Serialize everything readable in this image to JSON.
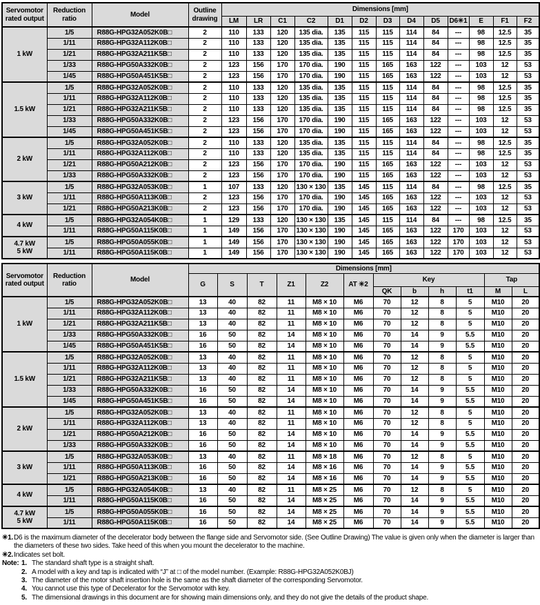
{
  "table1": {
    "header": {
      "output": "Servomotor\nrated output",
      "ratio": "Reduction\nratio",
      "model": "Model",
      "outline": "Outline\ndrawing",
      "dims": "Dimensions [mm]"
    },
    "dim_cols": [
      "LM",
      "LR",
      "C1",
      "C2",
      "D1",
      "D2",
      "D3",
      "D4",
      "D5",
      "D6✳1",
      "E",
      "F1",
      "F2"
    ],
    "groups": [
      {
        "output": "1 kW",
        "rows": [
          [
            "1/5",
            "R88G-HPG32A052K0B□",
            "2",
            "110",
            "133",
            "120",
            "135 dia.",
            "135",
            "115",
            "115",
            "114",
            "84",
            "---",
            "98",
            "12.5",
            "35"
          ],
          [
            "1/11",
            "R88G-HPG32A112K0B□",
            "2",
            "110",
            "133",
            "120",
            "135 dia.",
            "135",
            "115",
            "115",
            "114",
            "84",
            "---",
            "98",
            "12.5",
            "35"
          ],
          [
            "1/21",
            "R88G-HPG32A211K5B□",
            "2",
            "110",
            "133",
            "120",
            "135 dia.",
            "135",
            "115",
            "115",
            "114",
            "84",
            "---",
            "98",
            "12.5",
            "35"
          ],
          [
            "1/33",
            "R88G-HPG50A332K0B□",
            "2",
            "123",
            "156",
            "170",
            "170 dia.",
            "190",
            "115",
            "165",
            "163",
            "122",
            "---",
            "103",
            "12",
            "53"
          ],
          [
            "1/45",
            "R88G-HPG50A451K5B□",
            "2",
            "123",
            "156",
            "170",
            "170 dia.",
            "190",
            "115",
            "165",
            "163",
            "122",
            "---",
            "103",
            "12",
            "53"
          ]
        ]
      },
      {
        "output": "1.5 kW",
        "rows": [
          [
            "1/5",
            "R88G-HPG32A052K0B□",
            "2",
            "110",
            "133",
            "120",
            "135 dia.",
            "135",
            "115",
            "115",
            "114",
            "84",
            "---",
            "98",
            "12.5",
            "35"
          ],
          [
            "1/11",
            "R88G-HPG32A112K0B□",
            "2",
            "110",
            "133",
            "120",
            "135 dia.",
            "135",
            "115",
            "115",
            "114",
            "84",
            "---",
            "98",
            "12.5",
            "35"
          ],
          [
            "1/21",
            "R88G-HPG32A211K5B□",
            "2",
            "110",
            "133",
            "120",
            "135 dia.",
            "135",
            "115",
            "115",
            "114",
            "84",
            "---",
            "98",
            "12.5",
            "35"
          ],
          [
            "1/33",
            "R88G-HPG50A332K0B□",
            "2",
            "123",
            "156",
            "170",
            "170 dia.",
            "190",
            "115",
            "165",
            "163",
            "122",
            "---",
            "103",
            "12",
            "53"
          ],
          [
            "1/45",
            "R88G-HPG50A451K5B□",
            "2",
            "123",
            "156",
            "170",
            "170 dia.",
            "190",
            "115",
            "165",
            "163",
            "122",
            "---",
            "103",
            "12",
            "53"
          ]
        ]
      },
      {
        "output": "2 kW",
        "rows": [
          [
            "1/5",
            "R88G-HPG32A052K0B□",
            "2",
            "110",
            "133",
            "120",
            "135 dia.",
            "135",
            "115",
            "115",
            "114",
            "84",
            "---",
            "98",
            "12.5",
            "35"
          ],
          [
            "1/11",
            "R88G-HPG32A112K0B□",
            "2",
            "110",
            "133",
            "120",
            "135 dia.",
            "135",
            "115",
            "115",
            "114",
            "84",
            "---",
            "98",
            "12.5",
            "35"
          ],
          [
            "1/21",
            "R88G-HPG50A212K0B□",
            "2",
            "123",
            "156",
            "170",
            "170 dia.",
            "190",
            "115",
            "165",
            "163",
            "122",
            "---",
            "103",
            "12",
            "53"
          ],
          [
            "1/33",
            "R88G-HPG50A332K0B□",
            "2",
            "123",
            "156",
            "170",
            "170 dia.",
            "190",
            "115",
            "165",
            "163",
            "122",
            "---",
            "103",
            "12",
            "53"
          ]
        ]
      },
      {
        "output": "3 kW",
        "rows": [
          [
            "1/5",
            "R88G-HPG32A053K0B□",
            "1",
            "107",
            "133",
            "120",
            "130 × 130",
            "135",
            "145",
            "115",
            "114",
            "84",
            "---",
            "98",
            "12.5",
            "35"
          ],
          [
            "1/11",
            "R88G-HPG50A113K0B□",
            "2",
            "123",
            "156",
            "170",
            "170 dia.",
            "190",
            "145",
            "165",
            "163",
            "122",
            "---",
            "103",
            "12",
            "53"
          ],
          [
            "1/21",
            "R88G-HPG50A213K0B□",
            "2",
            "123",
            "156",
            "170",
            "170 dia.",
            "190",
            "145",
            "165",
            "163",
            "122",
            "---",
            "103",
            "12",
            "53"
          ]
        ]
      },
      {
        "output": "4 kW",
        "rows": [
          [
            "1/5",
            "R88G-HPG32A054K0B□",
            "1",
            "129",
            "133",
            "120",
            "130 × 130",
            "135",
            "145",
            "115",
            "114",
            "84",
            "---",
            "98",
            "12.5",
            "35"
          ],
          [
            "1/11",
            "R88G-HPG50A115K0B□",
            "1",
            "149",
            "156",
            "170",
            "130 × 130",
            "190",
            "145",
            "165",
            "163",
            "122",
            "170",
            "103",
            "12",
            "53"
          ]
        ]
      },
      {
        "output": "4.7 kW\n5 kW",
        "rows": [
          [
            "1/5",
            "R88G-HPG50A055K0B□",
            "1",
            "149",
            "156",
            "170",
            "130 × 130",
            "190",
            "145",
            "165",
            "163",
            "122",
            "170",
            "103",
            "12",
            "53"
          ],
          [
            "1/11",
            "R88G-HPG50A115K0B□",
            "1",
            "149",
            "156",
            "170",
            "130 × 130",
            "190",
            "145",
            "165",
            "163",
            "122",
            "170",
            "103",
            "12",
            "53"
          ]
        ]
      }
    ]
  },
  "table2": {
    "header": {
      "output": "Servomotor\nrated output",
      "ratio": "Reduction\nratio",
      "model": "Model",
      "dims": "Dimensions [mm]",
      "key_label": "Key",
      "tap_label": "Tap"
    },
    "main_cols": [
      "G",
      "S",
      "T",
      "Z1",
      "Z2",
      "AT ✳2"
    ],
    "key_cols": [
      "QK",
      "b",
      "h",
      "t1"
    ],
    "tap_cols": [
      "M",
      "L"
    ],
    "groups": [
      {
        "output": "1 kW",
        "rows": [
          [
            "1/5",
            "R88G-HPG32A052K0B□",
            "13",
            "40",
            "82",
            "11",
            "M8 × 10",
            "M6",
            "70",
            "12",
            "8",
            "5",
            "M10",
            "20"
          ],
          [
            "1/11",
            "R88G-HPG32A112K0B□",
            "13",
            "40",
            "82",
            "11",
            "M8 × 10",
            "M6",
            "70",
            "12",
            "8",
            "5",
            "M10",
            "20"
          ],
          [
            "1/21",
            "R88G-HPG32A211K5B□",
            "13",
            "40",
            "82",
            "11",
            "M8 × 10",
            "M6",
            "70",
            "12",
            "8",
            "5",
            "M10",
            "20"
          ],
          [
            "1/33",
            "R88G-HPG50A332K0B□",
            "16",
            "50",
            "82",
            "14",
            "M8 × 10",
            "M6",
            "70",
            "14",
            "9",
            "5.5",
            "M10",
            "20"
          ],
          [
            "1/45",
            "R88G-HPG50A451K5B□",
            "16",
            "50",
            "82",
            "14",
            "M8 × 10",
            "M6",
            "70",
            "14",
            "9",
            "5.5",
            "M10",
            "20"
          ]
        ]
      },
      {
        "output": "1.5 kW",
        "rows": [
          [
            "1/5",
            "R88G-HPG32A052K0B□",
            "13",
            "40",
            "82",
            "11",
            "M8 × 10",
            "M6",
            "70",
            "12",
            "8",
            "5",
            "M10",
            "20"
          ],
          [
            "1/11",
            "R88G-HPG32A112K0B□",
            "13",
            "40",
            "82",
            "11",
            "M8 × 10",
            "M6",
            "70",
            "12",
            "8",
            "5",
            "M10",
            "20"
          ],
          [
            "1/21",
            "R88G-HPG32A211K5B□",
            "13",
            "40",
            "82",
            "11",
            "M8 × 10",
            "M6",
            "70",
            "12",
            "8",
            "5",
            "M10",
            "20"
          ],
          [
            "1/33",
            "R88G-HPG50A332K0B□",
            "16",
            "50",
            "82",
            "14",
            "M8 × 10",
            "M6",
            "70",
            "14",
            "9",
            "5.5",
            "M10",
            "20"
          ],
          [
            "1/45",
            "R88G-HPG50A451K5B□",
            "16",
            "50",
            "82",
            "14",
            "M8 × 10",
            "M6",
            "70",
            "14",
            "9",
            "5.5",
            "M10",
            "20"
          ]
        ]
      },
      {
        "output": "2 kW",
        "rows": [
          [
            "1/5",
            "R88G-HPG32A052K0B□",
            "13",
            "40",
            "82",
            "11",
            "M8 × 10",
            "M6",
            "70",
            "12",
            "8",
            "5",
            "M10",
            "20"
          ],
          [
            "1/11",
            "R88G-HPG32A112K0B□",
            "13",
            "40",
            "82",
            "11",
            "M8 × 10",
            "M6",
            "70",
            "12",
            "8",
            "5",
            "M10",
            "20"
          ],
          [
            "1/21",
            "R88G-HPG50A212K0B□",
            "16",
            "50",
            "82",
            "14",
            "M8 × 10",
            "M6",
            "70",
            "14",
            "9",
            "5.5",
            "M10",
            "20"
          ],
          [
            "1/33",
            "R88G-HPG50A332K0B□",
            "16",
            "50",
            "82",
            "14",
            "M8 × 10",
            "M6",
            "70",
            "14",
            "9",
            "5.5",
            "M10",
            "20"
          ]
        ]
      },
      {
        "output": "3 kW",
        "rows": [
          [
            "1/5",
            "R88G-HPG32A053K0B□",
            "13",
            "40",
            "82",
            "11",
            "M8 × 18",
            "M6",
            "70",
            "12",
            "8",
            "5",
            "M10",
            "20"
          ],
          [
            "1/11",
            "R88G-HPG50A113K0B□",
            "16",
            "50",
            "82",
            "14",
            "M8 × 16",
            "M6",
            "70",
            "14",
            "9",
            "5.5",
            "M10",
            "20"
          ],
          [
            "1/21",
            "R88G-HPG50A213K0B□",
            "16",
            "50",
            "82",
            "14",
            "M8 × 16",
            "M6",
            "70",
            "14",
            "9",
            "5.5",
            "M10",
            "20"
          ]
        ]
      },
      {
        "output": "4 kW",
        "rows": [
          [
            "1/5",
            "R88G-HPG32A054K0B□",
            "13",
            "40",
            "82",
            "11",
            "M8 × 25",
            "M6",
            "70",
            "12",
            "8",
            "5",
            "M10",
            "20"
          ],
          [
            "1/11",
            "R88G-HPG50A115K0B□",
            "16",
            "50",
            "82",
            "14",
            "M8 × 25",
            "M6",
            "70",
            "14",
            "9",
            "5.5",
            "M10",
            "20"
          ]
        ]
      },
      {
        "output": "4.7 kW\n5 kW",
        "rows": [
          [
            "1/5",
            "R88G-HPG50A055K0B□",
            "16",
            "50",
            "82",
            "14",
            "M8 × 25",
            "M6",
            "70",
            "14",
            "9",
            "5.5",
            "M10",
            "20"
          ],
          [
            "1/11",
            "R88G-HPG50A115K0B□",
            "16",
            "50",
            "82",
            "14",
            "M8 × 25",
            "M6",
            "70",
            "14",
            "9",
            "5.5",
            "M10",
            "20"
          ]
        ]
      }
    ]
  },
  "footnotes": {
    "star1": {
      "marker": "✳1.",
      "text": "D6 is the maximum diameter of the decelerator body between the flange side and Servomotor side. (See Outline Drawing) The value is given only when the diameter is larger than the diameters of these two sides. Take heed of this when you mount the decelerator to the machine."
    },
    "star2": {
      "marker": "✳2.",
      "text": "Indicates set bolt."
    },
    "note_label": "Note:",
    "notes": [
      {
        "num": "1.",
        "text": "The standard shaft type is a straight shaft."
      },
      {
        "num": "2.",
        "text": "A model with a key and tap is indicated with “J” at □ of the model number. (Example: R88G-HPG32A052K0BJ)"
      },
      {
        "num": "3.",
        "text": "The diameter of the motor shaft insertion hole is the same as the shaft diameter of the corresponding Servomotor."
      },
      {
        "num": "4.",
        "text": "You cannot use this type of Decelerator for the Servomotor with key."
      },
      {
        "num": "5.",
        "text": "The dimensional drawings in this document are for showing main dimensions only, and they do not give the details of the product shape."
      }
    ]
  },
  "colors": {
    "header_bg": "#dadada",
    "border": "#000000",
    "page_bg": "#ffffff"
  }
}
